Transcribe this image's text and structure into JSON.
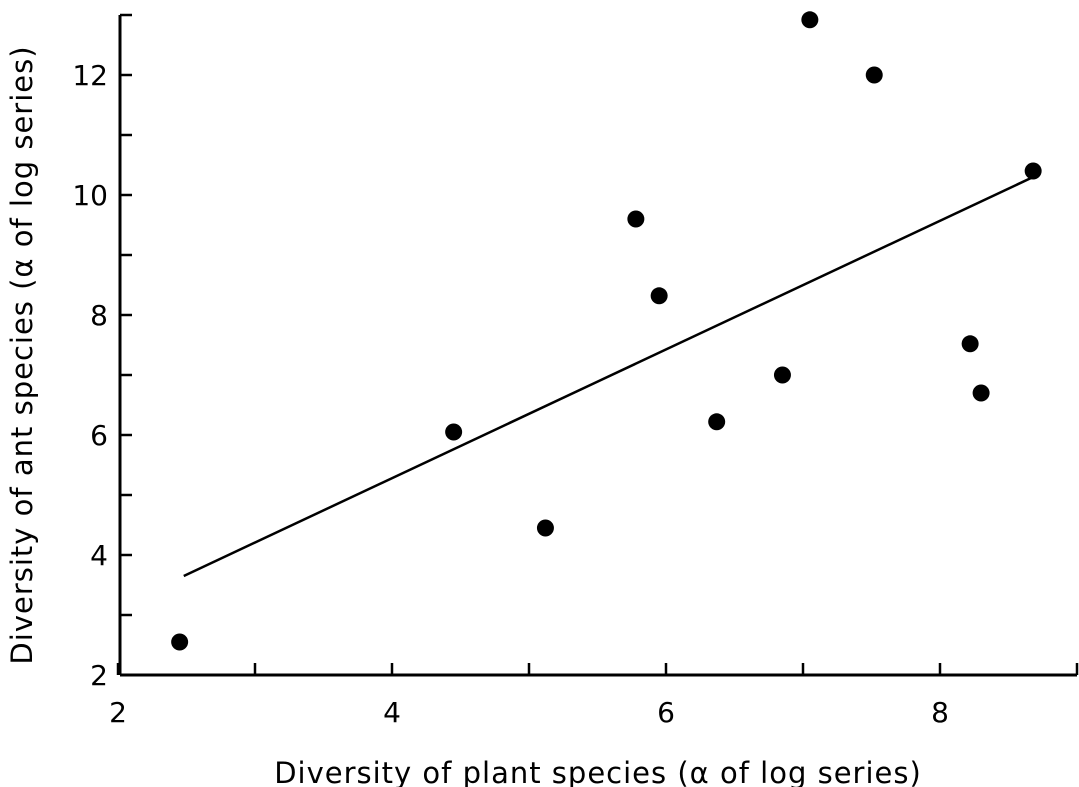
{
  "chart_data": {
    "type": "scatter",
    "title": "",
    "xlabel": "Diversity of plant species (α of log series)",
    "ylabel": "Diversity of ant species (α of log series)",
    "xlim": [
      2,
      9
    ],
    "ylim": [
      2,
      13
    ],
    "x_ticks": [
      2,
      4,
      6,
      8
    ],
    "x_minor_ticks": [
      3,
      5,
      7,
      9
    ],
    "y_ticks": [
      2,
      4,
      6,
      8,
      10,
      12
    ],
    "y_minor_ticks": [
      3,
      5,
      7,
      9,
      11,
      13
    ],
    "grid": false,
    "series": [
      {
        "points": [
          {
            "x": 2.45,
            "y": 2.55
          },
          {
            "x": 4.45,
            "y": 6.05
          },
          {
            "x": 5.12,
            "y": 4.45
          },
          {
            "x": 5.78,
            "y": 9.6
          },
          {
            "x": 5.95,
            "y": 8.32
          },
          {
            "x": 6.37,
            "y": 6.22
          },
          {
            "x": 6.85,
            "y": 7.0
          },
          {
            "x": 7.05,
            "y": 12.92
          },
          {
            "x": 7.52,
            "y": 12.0
          },
          {
            "x": 8.22,
            "y": 7.52
          },
          {
            "x": 8.3,
            "y": 6.7
          },
          {
            "x": 8.68,
            "y": 10.4
          }
        ]
      }
    ],
    "trend_line": {
      "x": [
        2.48,
        8.68
      ],
      "y": [
        3.65,
        10.3
      ]
    }
  }
}
